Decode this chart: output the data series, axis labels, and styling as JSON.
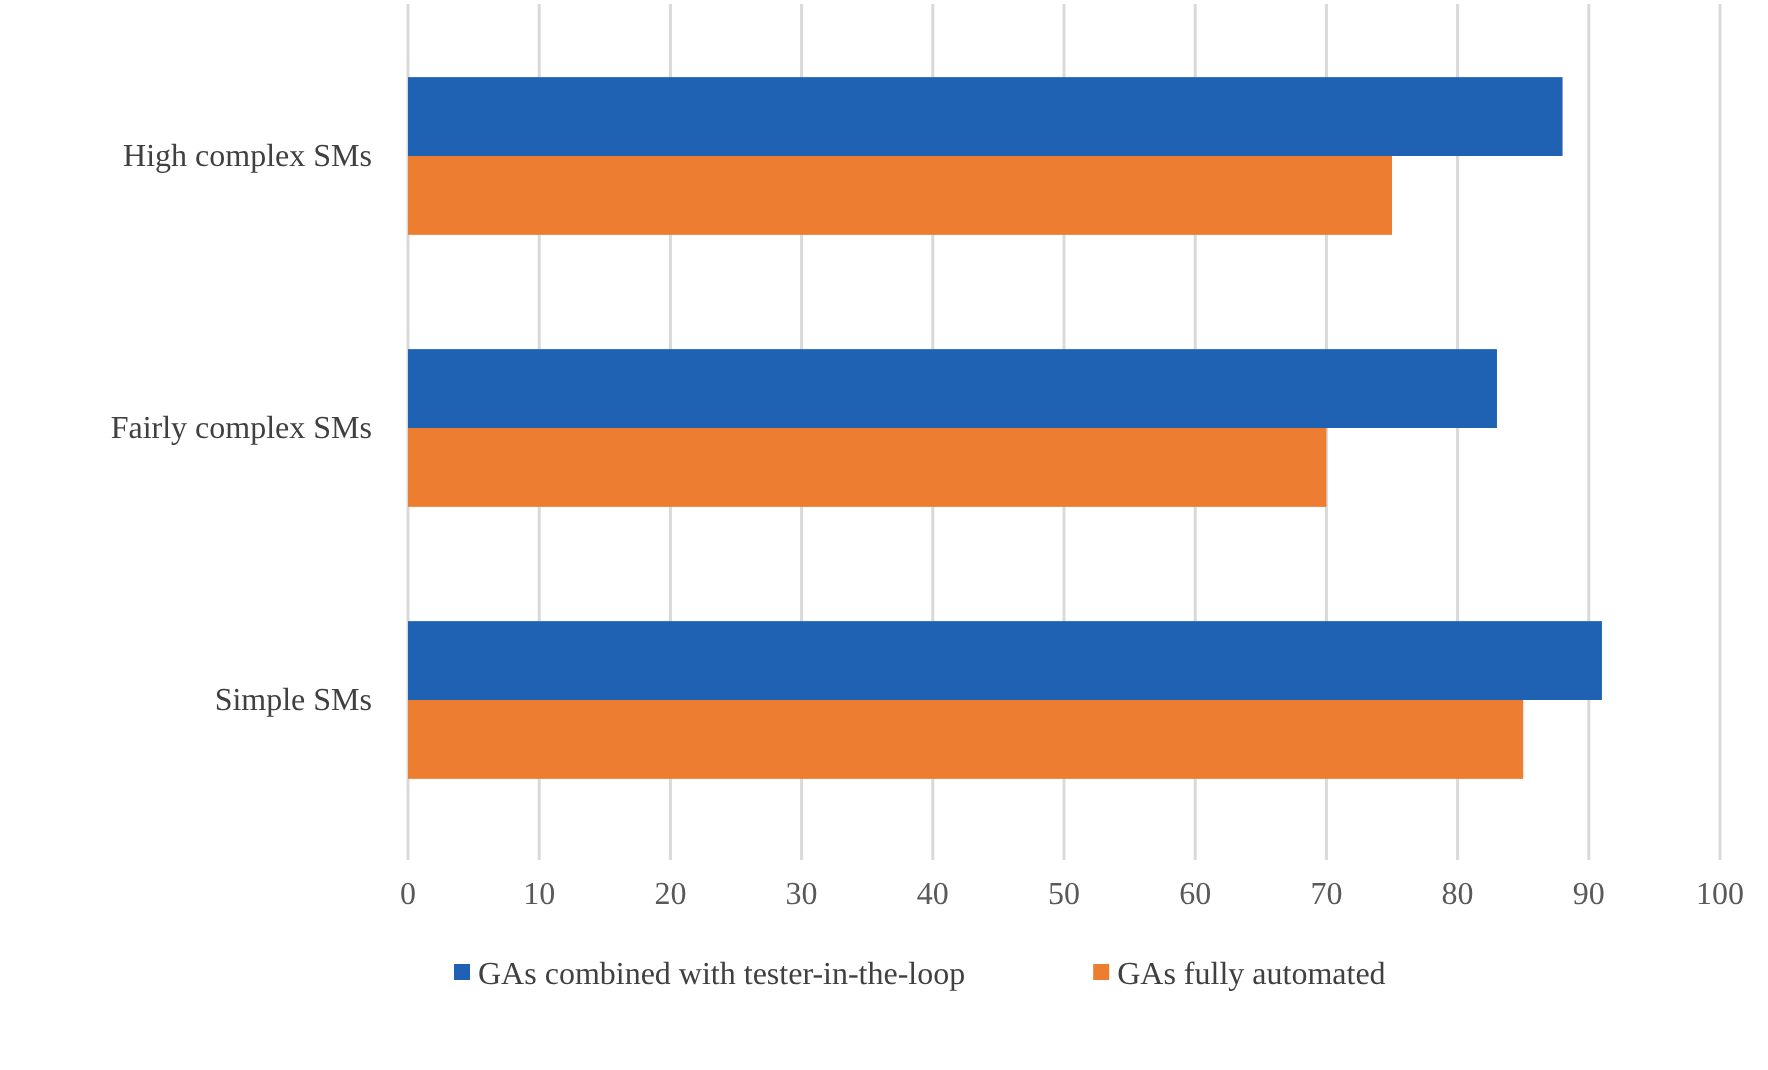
{
  "chart_data": {
    "type": "bar",
    "orientation": "horizontal",
    "categories": [
      "High complex SMs",
      "Fairly complex SMs",
      "Simple SMs"
    ],
    "series": [
      {
        "name": "GAs combined with tester-in-the-loop",
        "color": "#1f62b4",
        "values": [
          88,
          83,
          91
        ]
      },
      {
        "name": "GAs fully automated",
        "color": "#ed7d31",
        "values": [
          75,
          70,
          85
        ]
      }
    ],
    "xlim": [
      0,
      100
    ],
    "xticks": [
      0,
      10,
      20,
      30,
      40,
      50,
      60,
      70,
      80,
      90,
      100
    ],
    "grid": "x",
    "legend": "bottom"
  }
}
